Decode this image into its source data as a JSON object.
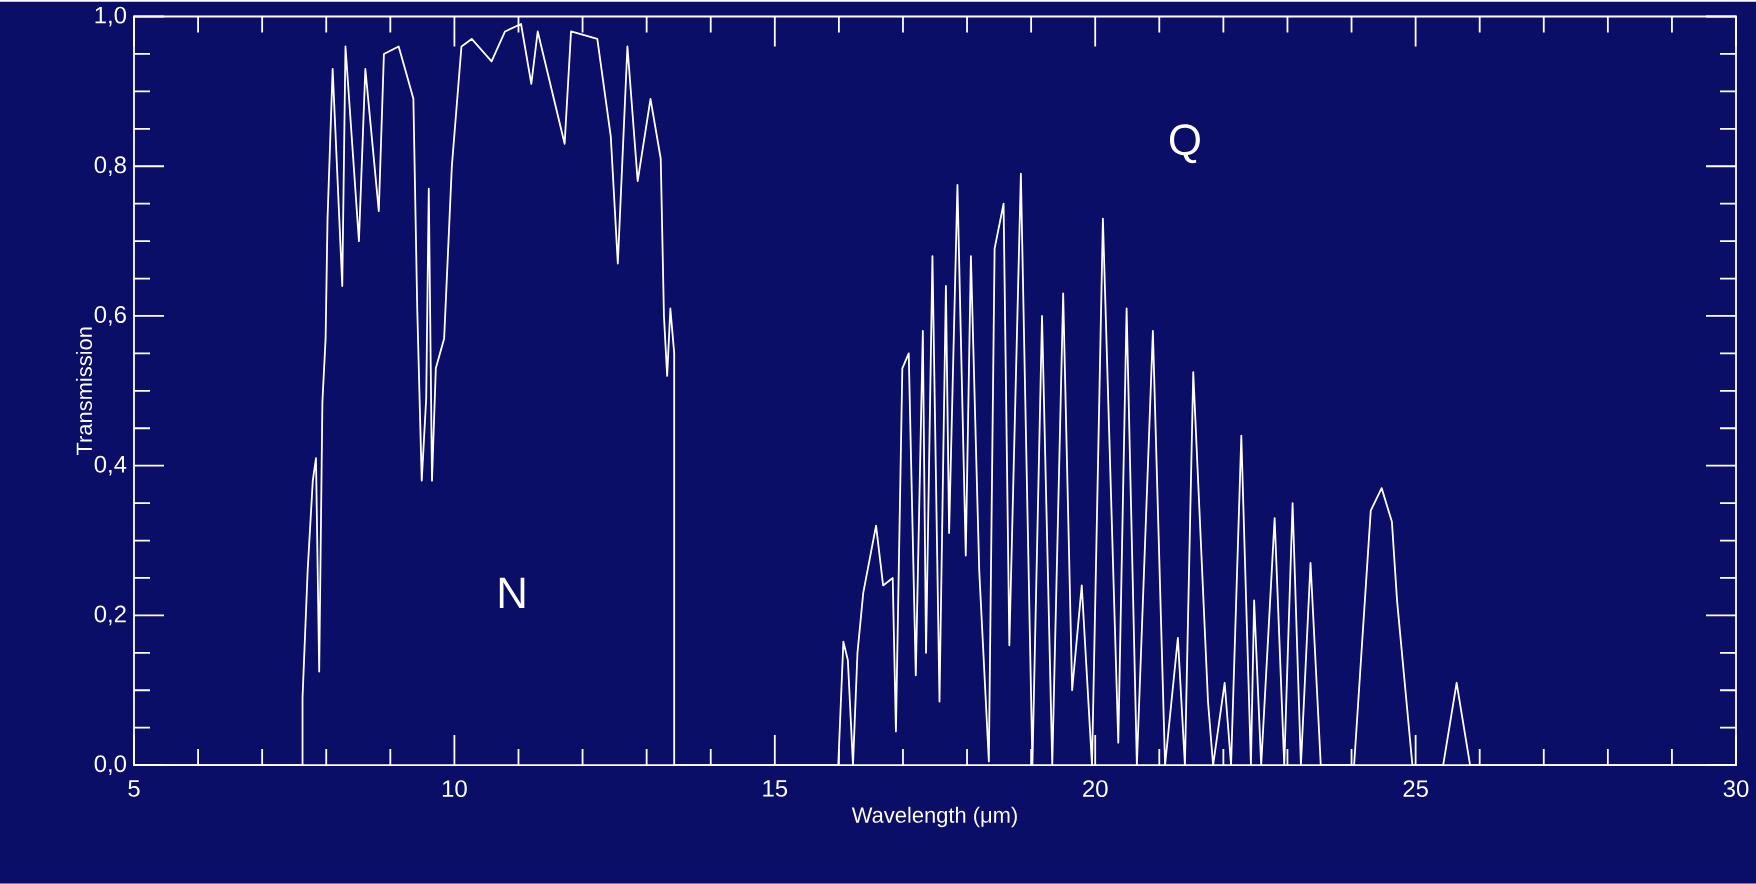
{
  "chart_data": {
    "type": "line",
    "xlabel": "Wavelength (μm)",
    "ylabel": "Transmission",
    "xlim": [
      5,
      30
    ],
    "ylim": [
      0,
      1.0
    ],
    "xticks": [
      5,
      10,
      15,
      20,
      25,
      30
    ],
    "yticks": [
      {
        "value": 0,
        "label": "0,0"
      },
      {
        "value": 0.2,
        "label": "0,2"
      },
      {
        "value": 0.4,
        "label": "0,4"
      },
      {
        "value": 0.6,
        "label": "0,6"
      },
      {
        "value": 0.8,
        "label": "0,8"
      },
      {
        "value": 1.0,
        "label": "1,0"
      }
    ],
    "annotations": [
      "N",
      "Q"
    ],
    "x": [
      5,
      7.63,
      7.63,
      7.71,
      7.79,
      7.84,
      7.89,
      7.94,
      7.99,
      8.02,
      8.1,
      8.25,
      8.3,
      8.51,
      8.61,
      8.82,
      8.9,
      9.13,
      9.23,
      9.36,
      9.42,
      9.49,
      9.56,
      9.6,
      9.65,
      9.71,
      9.84,
      9.96,
      10.11,
      10.27,
      10.58,
      10.79,
      11.04,
      11.2,
      11.3,
      11.72,
      11.82,
      12.23,
      12.44,
      12.55,
      12.7,
      12.86,
      13.06,
      13.22,
      13.27,
      13.32,
      13.37,
      13.43,
      13.43,
      15.99,
      16.07,
      16.14,
      16.22,
      16.29,
      16.38,
      16.58,
      16.69,
      16.84,
      16.89,
      16.99,
      17.09,
      17.2,
      17.31,
      17.36,
      17.46,
      17.57,
      17.67,
      17.72,
      17.85,
      17.98,
      18.06,
      18.19,
      18.34,
      18.43,
      18.57,
      18.66,
      18.84,
      19.02,
      19.17,
      19.33,
      19.5,
      19.64,
      19.79,
      19.95,
      20.12,
      20.36,
      20.49,
      20.65,
      20.9,
      21.09,
      21.29,
      21.4,
      21.53,
      21.76,
      21.84,
      22.02,
      22.12,
      22.28,
      22.43,
      22.48,
      22.59,
      22.8,
      22.95,
      23.08,
      23.21,
      23.36,
      23.52,
      24.04,
      24.3,
      24.47,
      24.63,
      24.71,
      24.95,
      25.43,
      25.64,
      25.85,
      30
    ],
    "series": [
      {
        "color": "#ffffff",
        "values": [
          0,
          0,
          0.09,
          0.26,
          0.38,
          0.41,
          0.125,
          0.485,
          0.57,
          0.73,
          0.93,
          0.64,
          0.96,
          0.7,
          0.93,
          0.74,
          0.95,
          0.96,
          0.93,
          0.89,
          0.61,
          0.38,
          0.49,
          0.77,
          0.38,
          0.53,
          0.57,
          0.8,
          0.96,
          0.97,
          0.94,
          0.98,
          0.99,
          0.91,
          0.98,
          0.83,
          0.98,
          0.97,
          0.84,
          0.67,
          0.96,
          0.78,
          0.89,
          0.81,
          0.6,
          0.52,
          0.61,
          0.55,
          0,
          0,
          0.165,
          0.14,
          0,
          0.15,
          0.23,
          0.32,
          0.24,
          0.25,
          0.045,
          0.53,
          0.55,
          0.12,
          0.58,
          0.15,
          0.68,
          0.085,
          0.64,
          0.31,
          0.775,
          0.28,
          0.68,
          0.26,
          0.005,
          0.69,
          0.75,
          0.16,
          0.79,
          0,
          0.6,
          0,
          0.63,
          0.1,
          0.24,
          0,
          0.73,
          0.03,
          0.61,
          0,
          0.58,
          0,
          0.17,
          0,
          0.525,
          0.085,
          0,
          0.11,
          0,
          0.44,
          0,
          0.22,
          0,
          0.33,
          0,
          0.35,
          0,
          0.27,
          0,
          0,
          0.34,
          0.37,
          0.325,
          0.22,
          0,
          0,
          0.11,
          0,
          0
        ]
      }
    ]
  }
}
